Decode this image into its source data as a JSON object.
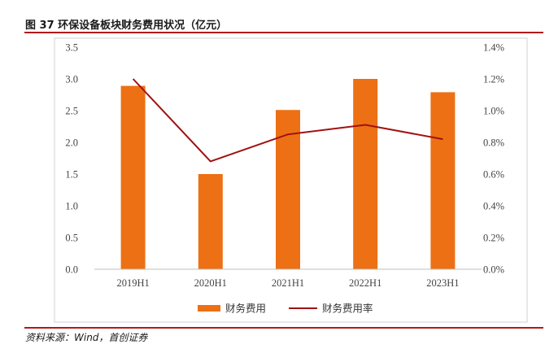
{
  "figure": {
    "title": "图 37 环保设备板块财务费用状况（亿元）",
    "source": "资料来源：Wind，首创证券"
  },
  "colors": {
    "bar": "#ED7014",
    "line": "#A01212",
    "accent_rule": "#B01A1A"
  },
  "chart_data": {
    "type": "bar",
    "categories": [
      "2019H1",
      "2020H1",
      "2021H1",
      "2022H1",
      "2023H1"
    ],
    "series": [
      {
        "name": "财务费用",
        "type": "bar",
        "axis": "left",
        "values": [
          2.89,
          1.5,
          2.51,
          3.0,
          2.79
        ]
      },
      {
        "name": "财务费用率",
        "type": "line",
        "axis": "right",
        "values": [
          1.2,
          0.68,
          0.85,
          0.91,
          0.82
        ]
      }
    ],
    "ylim_left": [
      0,
      3.5
    ],
    "yticks_left": [
      "0.0",
      "0.5",
      "1.0",
      "1.5",
      "2.0",
      "2.5",
      "3.0",
      "3.5"
    ],
    "ylim_right": [
      0,
      1.4
    ],
    "yticks_right": [
      "0.0%",
      "0.2%",
      "0.4%",
      "0.6%",
      "0.8%",
      "1.0%",
      "1.2%",
      "1.4%"
    ],
    "grid": false,
    "legend": "bottom"
  }
}
